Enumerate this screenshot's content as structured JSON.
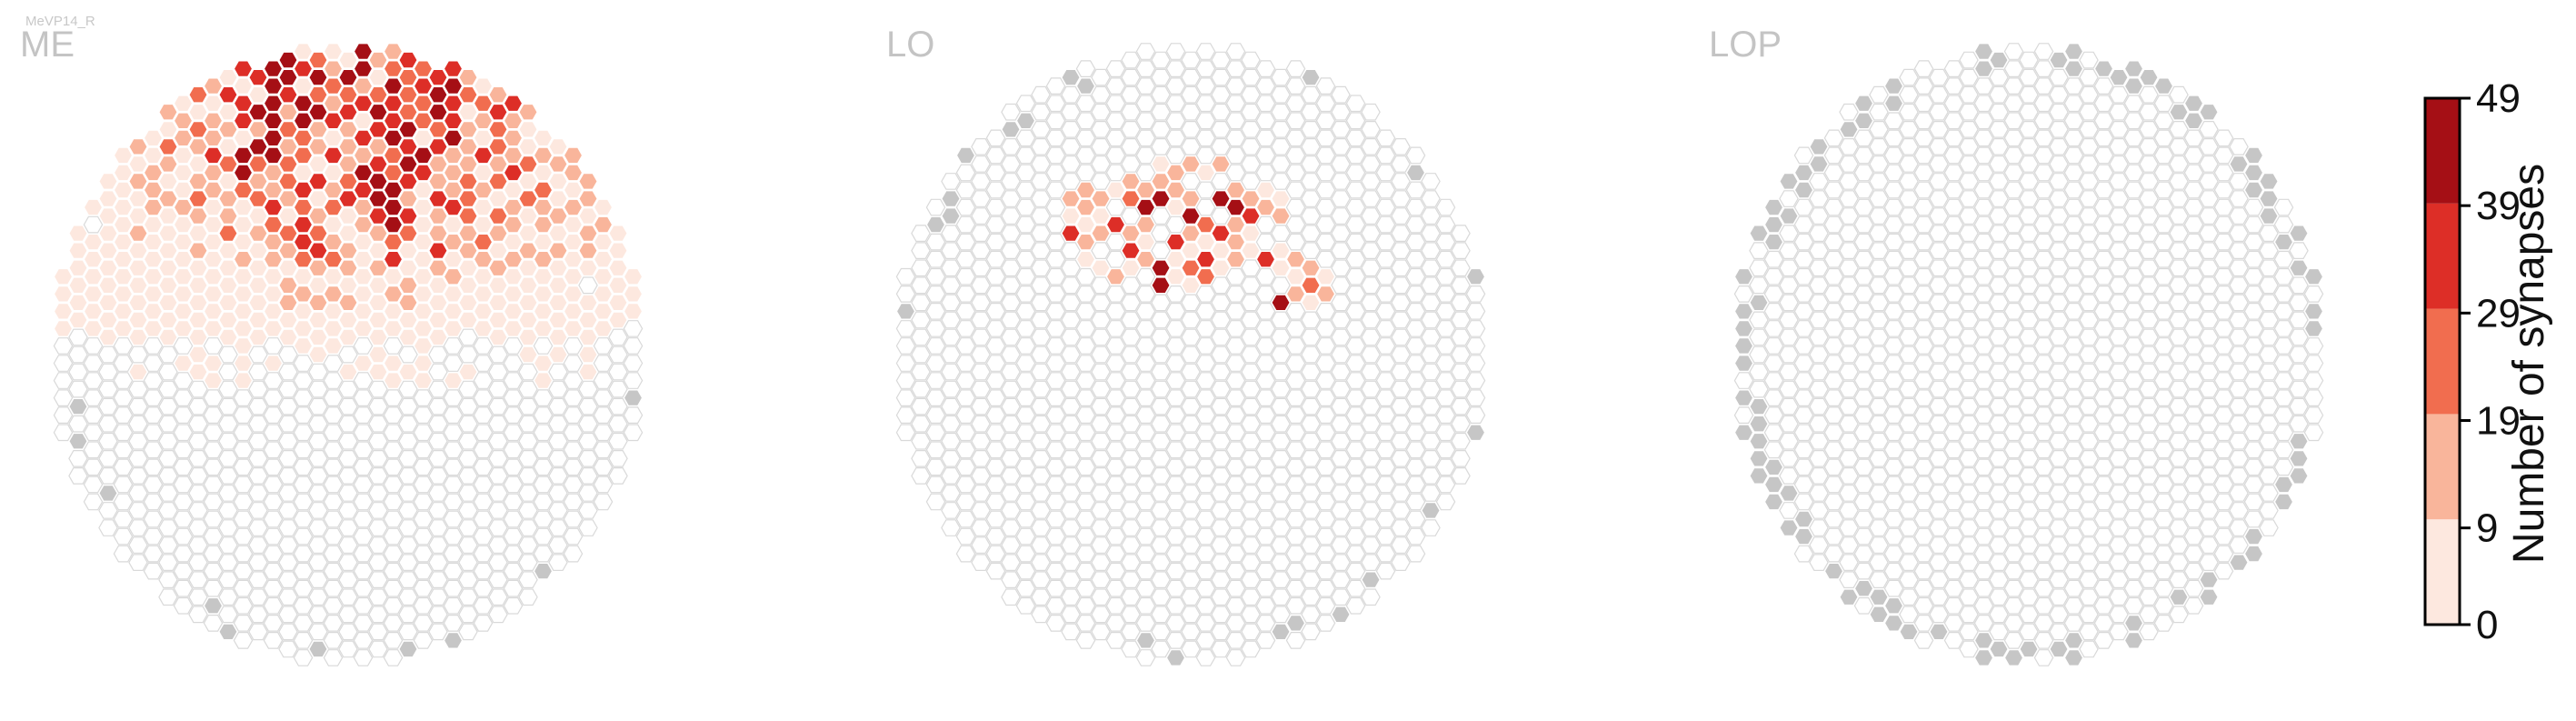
{
  "chart_data": {
    "type": "heatmap",
    "layout": "hexagonal eye-map, three neuropil panels",
    "figure_title": "MeVP14_R",
    "panels": [
      {
        "name": "ME",
        "filled_region": "upper half (dorsal)",
        "max_value": 49,
        "description": "Synapses spread broadly across the upper half; densest 39-49 columns near the top center"
      },
      {
        "name": "LO",
        "filled_region": "upper center patch",
        "max_value": 49,
        "description": "Small synapse patch in the upper center with a few dark columns"
      },
      {
        "name": "LOP",
        "filled_region": "none",
        "max_value": 0,
        "description": "No synapses; only grey column outline with gray rim columns"
      }
    ],
    "colorbar": {
      "label": "Number of synapses",
      "ticks": [
        0,
        9,
        19,
        29,
        39,
        49
      ],
      "bins": [
        {
          "range": [
            0,
            9
          ],
          "color": "#fde8df"
        },
        {
          "range": [
            9,
            19
          ],
          "color": "#f9b59b"
        },
        {
          "range": [
            19,
            29
          ],
          "color": "#f16d4f"
        },
        {
          "range": [
            29,
            39
          ],
          "color": "#dd2e27"
        },
        {
          "range": [
            39,
            49
          ],
          "color": "#a50f15"
        }
      ]
    },
    "empty_column_color": "#ffffff",
    "empty_column_edge": "#d9d9d9",
    "unmapped_column_color": "#c6c6c6"
  }
}
